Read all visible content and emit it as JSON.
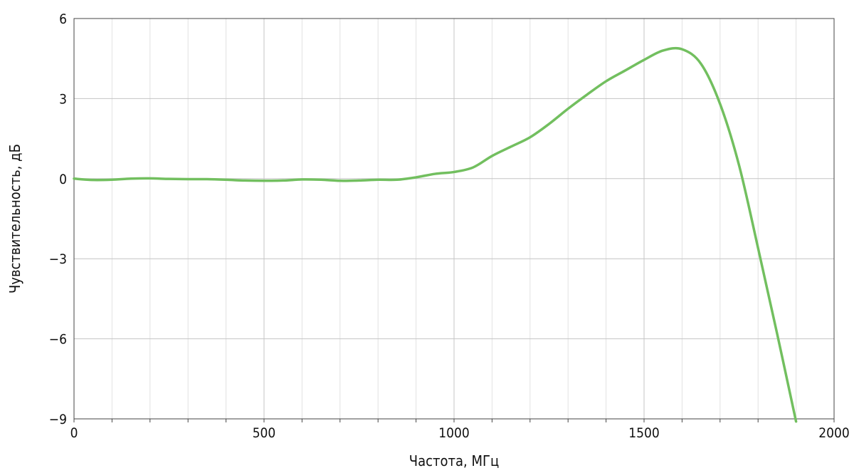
{
  "chart_data": {
    "type": "line",
    "title": "",
    "xlabel": "Частота, МГц",
    "ylabel": "Чувствительность, дБ",
    "xlim": [
      0,
      2000
    ],
    "ylim": [
      -9,
      6
    ],
    "xticks": [
      0,
      500,
      1000,
      1500,
      2000
    ],
    "xtick_labels": [
      "0",
      "500",
      "1000",
      "1500",
      "2000"
    ],
    "x_minor_step": 100,
    "yticks": [
      6,
      3,
      0,
      -3,
      -6,
      -9
    ],
    "ytick_labels": [
      "6",
      "3",
      "0",
      "−3",
      "−6",
      "−9"
    ],
    "grid": true,
    "series": [
      {
        "color": "#72bf5f",
        "x": [
          0,
          50,
          100,
          150,
          200,
          250,
          300,
          350,
          400,
          450,
          500,
          550,
          600,
          650,
          700,
          750,
          800,
          850,
          900,
          950,
          1000,
          1050,
          1100,
          1150,
          1200,
          1250,
          1300,
          1350,
          1400,
          1450,
          1500,
          1550,
          1600,
          1650,
          1700,
          1750,
          1800,
          1850,
          1900
        ],
        "y": [
          0.0,
          -0.05,
          -0.04,
          0.0,
          0.01,
          -0.01,
          -0.02,
          -0.02,
          -0.04,
          -0.07,
          -0.08,
          -0.07,
          -0.03,
          -0.04,
          -0.08,
          -0.07,
          -0.04,
          -0.04,
          0.05,
          0.18,
          0.25,
          0.42,
          0.85,
          1.2,
          1.55,
          2.05,
          2.62,
          3.15,
          3.65,
          4.05,
          4.45,
          4.8,
          4.85,
          4.3,
          2.8,
          0.5,
          -2.6,
          -5.8,
          -9.1
        ]
      }
    ]
  }
}
